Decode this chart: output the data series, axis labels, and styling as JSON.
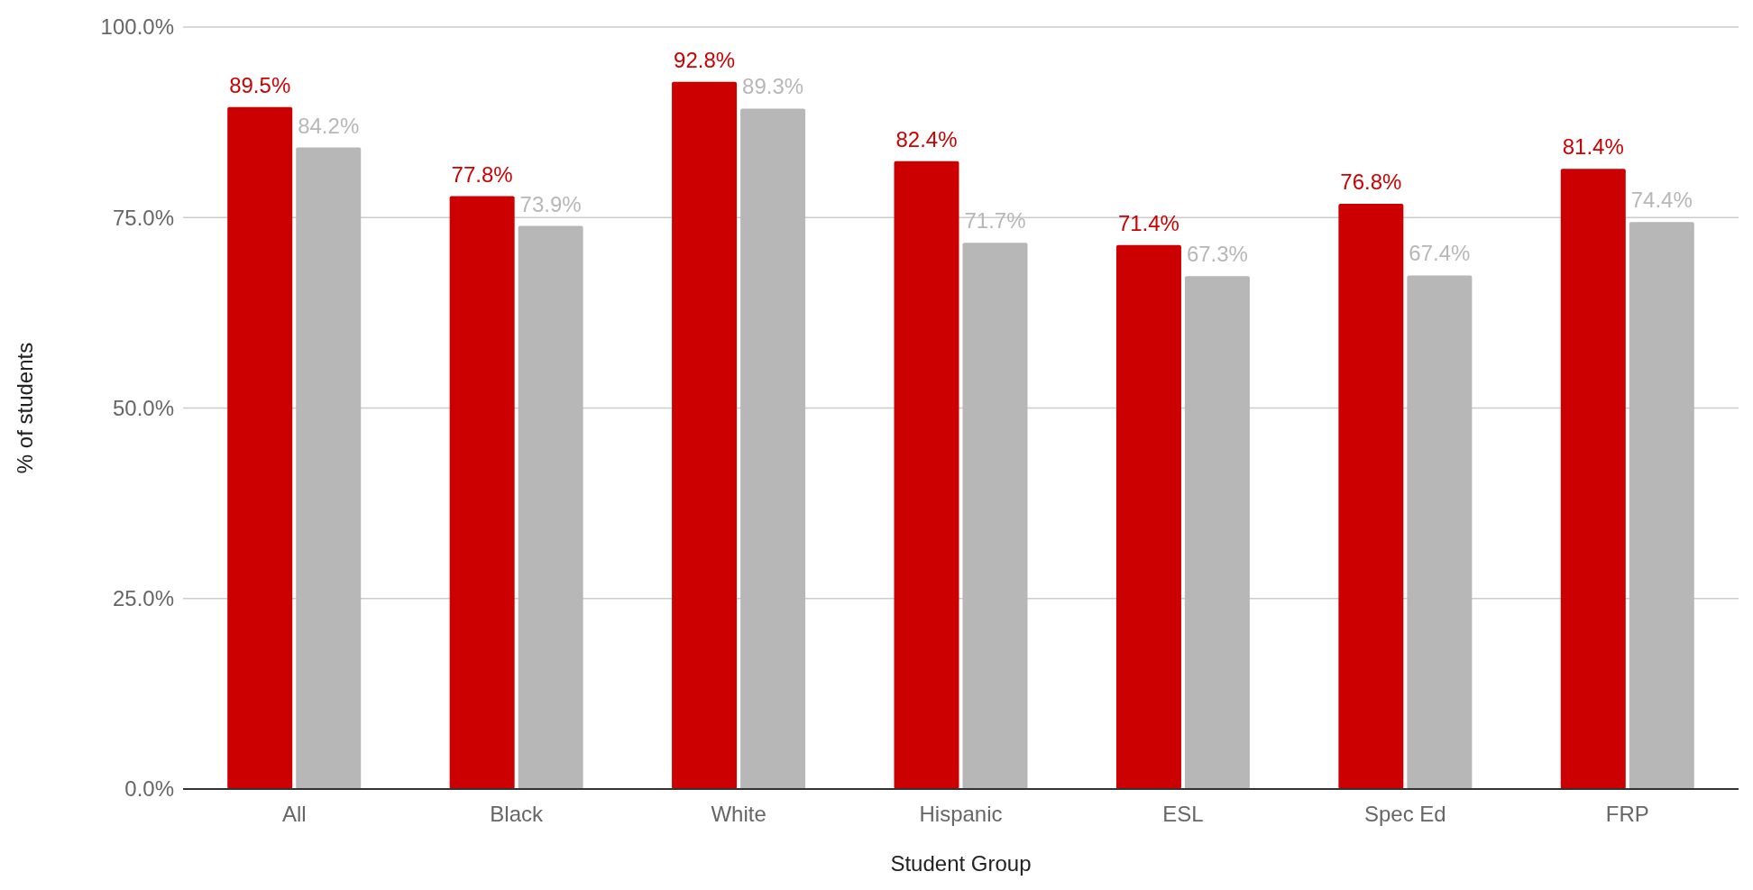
{
  "chart_data": {
    "type": "bar",
    "xlabel": "Student Group",
    "ylabel": "% of students",
    "categories": [
      "All",
      "Black",
      "White",
      "Hispanic",
      "ESL",
      "Spec Ed",
      "FRP"
    ],
    "series": [
      {
        "color": "#cc0000",
        "values": [
          89.5,
          77.8,
          92.8,
          82.4,
          71.4,
          76.8,
          81.4
        ],
        "value_labels": [
          "89.5%",
          "77.8%",
          "92.8%",
          "82.4%",
          "71.4%",
          "76.8%",
          "81.4%"
        ]
      },
      {
        "color": "#b7b7b7",
        "values": [
          84.2,
          73.9,
          89.3,
          71.7,
          67.3,
          67.4,
          74.4
        ],
        "value_labels": [
          "84.2%",
          "73.9%",
          "89.3%",
          "71.7%",
          "67.3%",
          "67.4%",
          "74.4%"
        ]
      }
    ],
    "ylim": [
      0,
      100
    ],
    "yticks": [
      {
        "value": 0,
        "label": "0.0%"
      },
      {
        "value": 25,
        "label": "25.0%"
      },
      {
        "value": 50,
        "label": "50.0%"
      },
      {
        "value": 75,
        "label": "75.0%"
      },
      {
        "value": 100,
        "label": "100.0%"
      }
    ],
    "grid": "y"
  }
}
